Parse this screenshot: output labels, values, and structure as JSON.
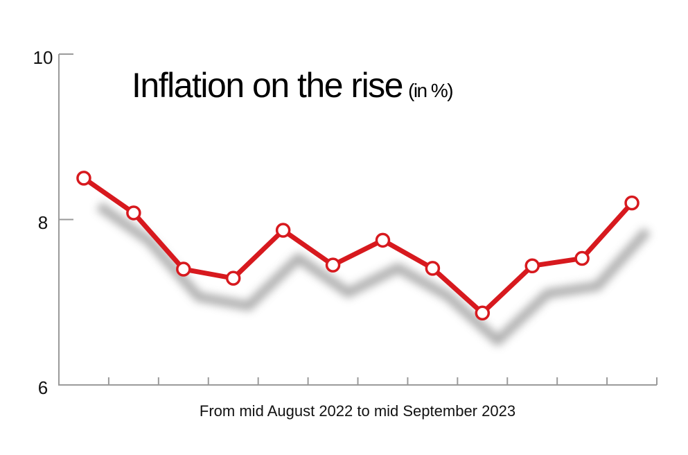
{
  "chart_data": {
    "type": "line",
    "title": "Inflation on the rise",
    "title_unit": "(in %)",
    "xlabel": "From mid August 2022 to mid September 2023",
    "ylabel": "",
    "ylim": [
      6,
      10
    ],
    "yticks": [
      "10",
      "8",
      "6"
    ],
    "grid": false,
    "line_color": "#d7191e",
    "axis_color": "#9a9a9a",
    "series": [
      {
        "values": [
          8.5,
          8.08,
          7.4,
          7.29,
          7.87,
          7.45,
          7.75,
          7.41,
          6.87,
          7.44,
          7.53,
          8.2
        ]
      }
    ]
  }
}
